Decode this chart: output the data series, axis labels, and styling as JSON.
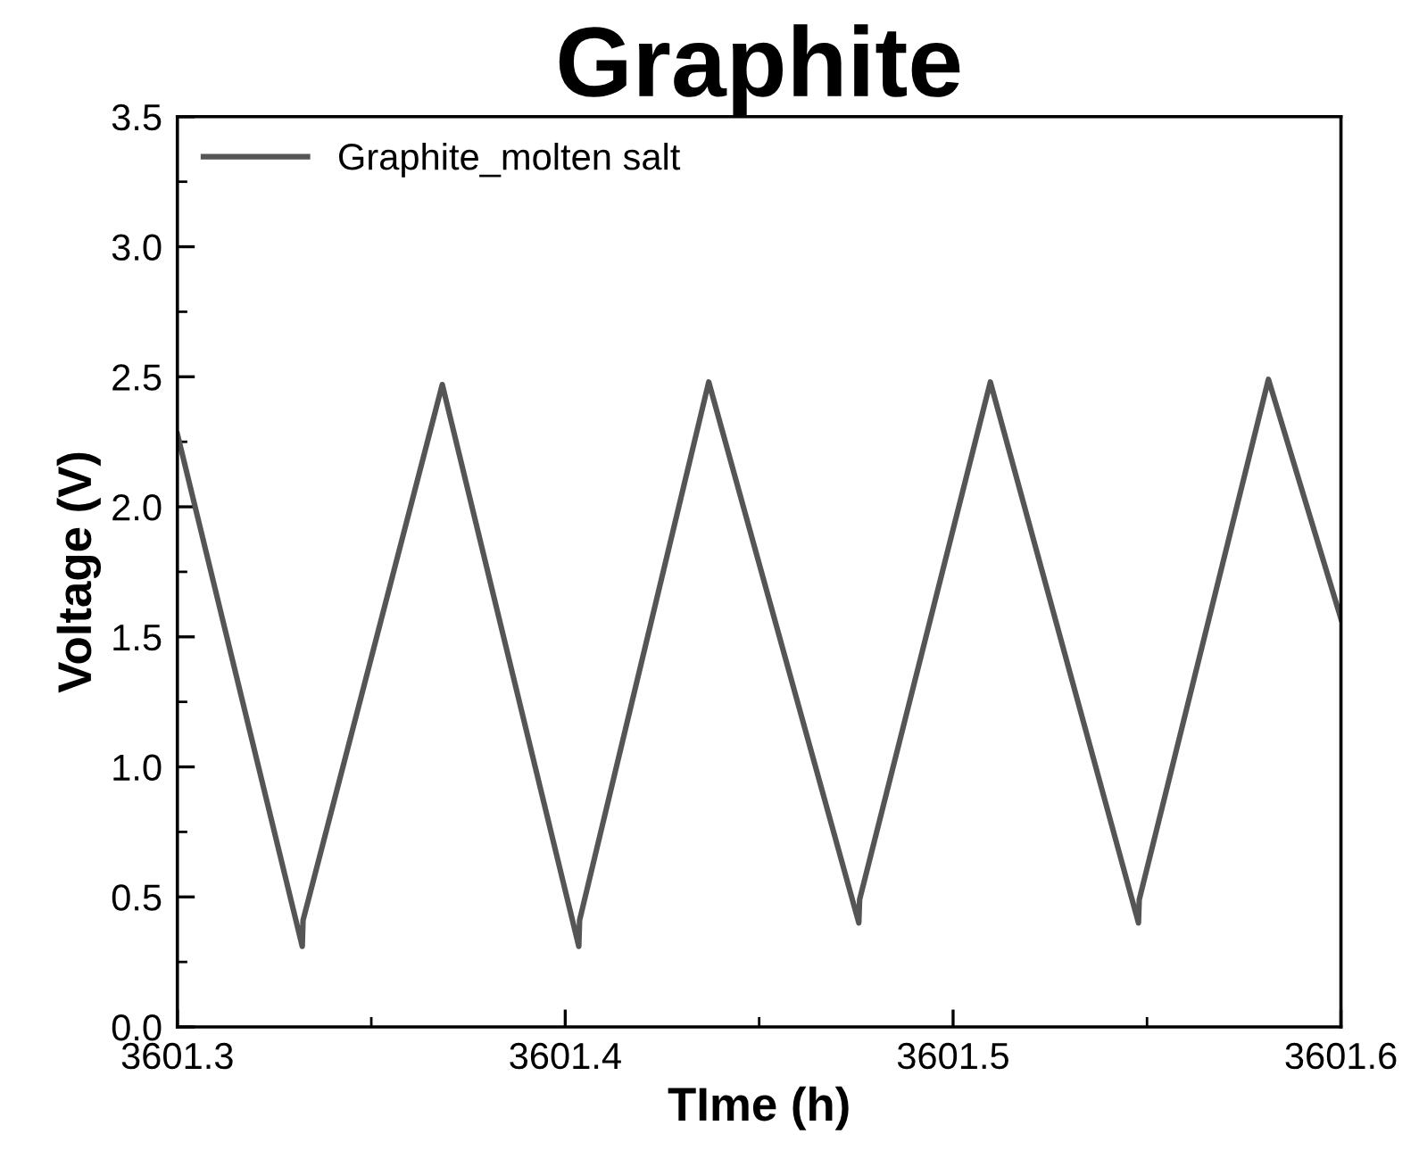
{
  "chart_data": {
    "type": "line",
    "title": "Graphite",
    "xlabel": "TIme (h)",
    "ylabel": "Voltage (V)",
    "xlim": [
      3601.3,
      3601.6
    ],
    "xticks": [
      3601.3,
      3601.4,
      3601.5,
      3601.6
    ],
    "ylim": [
      0,
      3.5
    ],
    "yticks": [
      {
        "value": 0,
        "label": "0.0"
      },
      0.5,
      {
        "value": 1,
        "label": "1.0"
      },
      1.5,
      {
        "value": 2,
        "label": "2.0"
      },
      2.5,
      {
        "value": 3,
        "label": "3.0"
      },
      3.5
    ],
    "grid": false,
    "legend": "top left",
    "marker": "none",
    "line_style": "solid",
    "series": [
      {
        "name": "Graphite_molten salt",
        "color": "#555555",
        "x": [
          3601.3,
          3601.3322,
          3601.3324,
          3601.3683,
          3601.4035,
          3601.4037,
          3601.437,
          3601.4757,
          3601.4759,
          3601.5096,
          3601.5478,
          3601.548,
          3601.5813,
          3601.6
        ],
        "values": [
          2.28,
          0.31,
          0.41,
          2.47,
          0.31,
          0.41,
          2.48,
          0.4,
          0.49,
          2.48,
          0.4,
          0.49,
          2.49,
          1.57
        ]
      }
    ]
  }
}
